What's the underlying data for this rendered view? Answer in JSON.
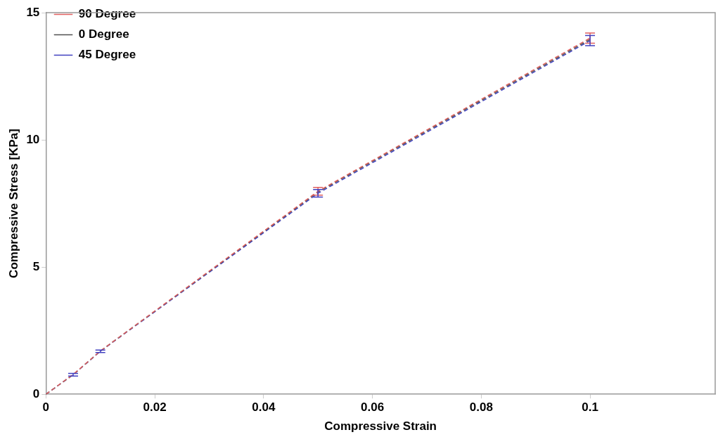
{
  "chart_data": {
    "type": "line",
    "xlabel": "Compressive Strain",
    "ylabel": "Compressive Stress [KPa]",
    "x": [
      0,
      0.005,
      0.01,
      0.05,
      0.1
    ],
    "series": [
      {
        "name": "90 Degree",
        "color": "#e06060",
        "values": [
          0,
          0.78,
          1.7,
          7.98,
          14.0
        ],
        "errors": [
          null,
          null,
          null,
          0.15,
          0.2
        ]
      },
      {
        "name": "0 Degree",
        "color": "#505050",
        "values": [
          0,
          0.77,
          1.7,
          7.95,
          13.95
        ]
      },
      {
        "name": "45 Degree",
        "color": "#4040c0",
        "values": [
          0,
          0.77,
          1.69,
          7.9,
          13.9
        ],
        "errors": [
          null,
          0.05,
          0.05,
          0.15,
          0.2
        ]
      }
    ],
    "xlim": [
      0,
      0.123
    ],
    "xticks": [
      0,
      0.02,
      0.04,
      0.06,
      0.08,
      0.1
    ],
    "ylim": [
      0,
      15
    ],
    "yticks": [
      0,
      5,
      10,
      15
    ],
    "grid": false,
    "legend": "top left",
    "marker": "none",
    "line_style": "dashed"
  }
}
